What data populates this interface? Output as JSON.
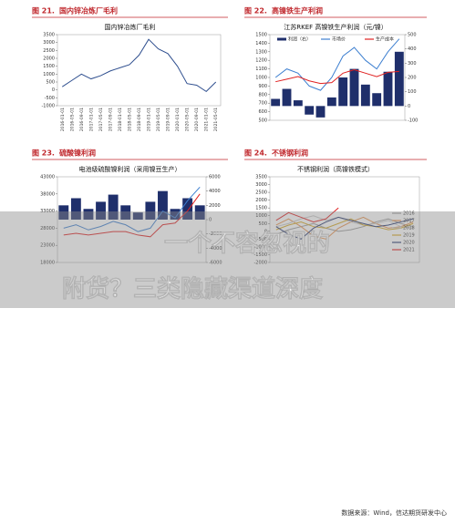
{
  "figures": [
    {
      "label": "图 21.",
      "title": "国内锌冶炼厂毛利",
      "chart": {
        "type": "line",
        "title": "国内锌冶炼厂毛利",
        "categories": [
          "2016-01-01",
          "2016-05-01",
          "2016-09-01",
          "2017-01-01",
          "2017-05-01",
          "2017-09-01",
          "2018-01-01",
          "2018-05-01",
          "2018-09-01",
          "2019-01-01",
          "2019-05-01",
          "2019-09-01",
          "2020-01-01",
          "2020-05-01",
          "2020-09-01",
          "2021-01-01",
          "2021-05-01"
        ],
        "series": [
          {
            "color": "#2f4f8f",
            "values": [
              200,
              600,
              1000,
              700,
              900,
              1200,
              1400,
              1600,
              2200,
              3200,
              2600,
              2300,
              1500,
              400,
              300,
              -100,
              500
            ]
          }
        ],
        "ylim": [
          -1000,
          3500
        ],
        "yticks": [
          -1000,
          -500,
          0,
          500,
          1000,
          1500,
          2000,
          2500,
          3000,
          3500
        ]
      }
    },
    {
      "label": "图 22.",
      "title": "高镍铁生产利润",
      "chart": {
        "type": "bar-line",
        "title": "江苏RKEF 高镍铁生产利润（元/镍）",
        "series": [
          {
            "name": "利润（右）",
            "kind": "bar",
            "axis": "y2",
            "color": "#1f2f6b",
            "values": [
              50,
              120,
              40,
              -60,
              -80,
              60,
              200,
              260,
              150,
              90,
              240,
              380
            ]
          },
          {
            "name": "市场价",
            "kind": "line",
            "color": "#3d7fd0",
            "values": [
              1000,
              1100,
              1050,
              900,
              850,
              1000,
              1250,
              1350,
              1200,
              1100,
              1300,
              1450
            ]
          },
          {
            "name": "生产成本",
            "kind": "line",
            "color": "#e02020",
            "values": [
              950,
              980,
              1010,
              960,
              930,
              940,
              1050,
              1090,
              1050,
              1010,
              1060,
              1070
            ]
          }
        ],
        "ylim": [
          500,
          1500
        ],
        "yticks": [
          500,
          600,
          700,
          800,
          900,
          1000,
          1100,
          1200,
          1300,
          1400,
          1500
        ],
        "y2lim": [
          -100,
          500
        ],
        "y2ticks": [
          -100,
          0,
          100,
          200,
          300,
          400,
          500
        ]
      }
    },
    {
      "label": "图 23.",
      "title": "硫酸镍利润",
      "chart": {
        "type": "bar-line",
        "title": "电池级硫酸镍利润（采用镍豆生产）",
        "series": [
          {
            "kind": "bar",
            "axis": "y2",
            "color": "#1f2f6b",
            "values": [
              2000,
              3000,
              1500,
              2500,
              3500,
              2000,
              1000,
              2500,
              4000,
              1500,
              3000,
              2000
            ]
          },
          {
            "kind": "line",
            "color": "#3d7fd0",
            "values": [
              28000,
              29000,
              27500,
              28500,
              30000,
              29000,
              27000,
              28000,
              33000,
              31000,
              36000,
              40000
            ]
          },
          {
            "kind": "line",
            "color": "#e02020",
            "values": [
              26000,
              26500,
              26000,
              26500,
              27000,
              27000,
              26000,
              25500,
              29000,
              29500,
              33000,
              38000
            ]
          }
        ],
        "ylim": [
          18000,
          43000
        ],
        "yticks": [
          18000,
          23000,
          28000,
          33000,
          38000,
          43000
        ],
        "y2lim": [
          -6000,
          6000
        ],
        "y2ticks": [
          -6000,
          -4000,
          -2000,
          0,
          2000,
          4000,
          6000
        ]
      }
    },
    {
      "label": "图 24.",
      "title": "不锈钢利润",
      "chart": {
        "type": "line",
        "title": "不锈钢利润（高镍铁模式）",
        "series": [
          {
            "name": "2016",
            "color": "#9a9a9a",
            "values": [
              -200,
              100,
              300,
              500,
              200,
              0,
              100,
              300,
              600,
              800,
              500,
              300
            ]
          },
          {
            "name": "2017",
            "color": "#e8904a",
            "values": [
              400,
              800,
              300,
              -300,
              -500,
              200,
              600,
              900,
              500,
              200,
              300,
              600
            ]
          },
          {
            "name": "2018",
            "color": "#c8c8c8",
            "values": [
              300,
              500,
              800,
              1000,
              700,
              900,
              600,
              400,
              500,
              700,
              300,
              200
            ]
          },
          {
            "name": "2019",
            "color": "#d6a820",
            "values": [
              100,
              400,
              600,
              300,
              200,
              500,
              800,
              400,
              300,
              100,
              200,
              500
            ]
          },
          {
            "name": "2020",
            "color": "#24346e",
            "values": [
              300,
              -200,
              -500,
              200,
              600,
              900,
              700,
              500,
              300,
              400,
              600,
              800
            ]
          },
          {
            "name": "2021",
            "color": "#e02020",
            "values": [
              700,
              1200,
              900,
              600,
              800,
              1500,
              null,
              null,
              null,
              null,
              null,
              null
            ]
          }
        ],
        "ylim": [
          -2000,
          3500
        ],
        "yticks": [
          -2000,
          -1500,
          -1000,
          -500,
          0,
          500,
          1000,
          1500,
          2000,
          2500,
          3000,
          3500
        ]
      }
    }
  ],
  "overlay": {
    "lines": [
      "一个不容忽视的",
      "附货？三类隐藏渠道深度"
    ]
  },
  "source": "数据来源：Wind，信达期货研发中心"
}
